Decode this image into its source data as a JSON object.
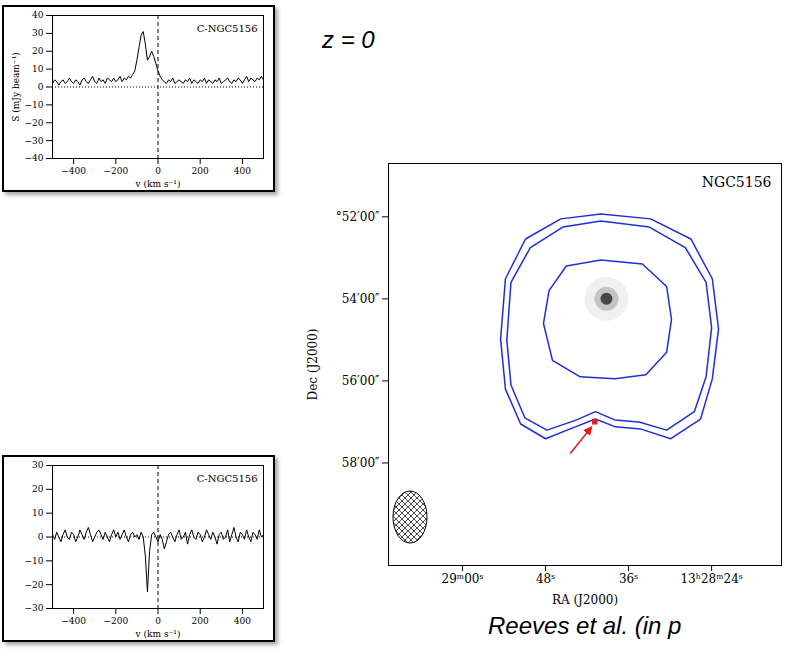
{
  "texts": {
    "redshift": "z = 0",
    "credit": "Reeves et al. (in p"
  },
  "chart_data": [
    {
      "type": "line",
      "title": "C-NGC5156",
      "x_label": "v (km s⁻¹)",
      "y_label": "S (mJy beam⁻¹)",
      "color": "#000000",
      "xlim": [
        -500,
        500
      ],
      "xticks": [
        -400,
        -200,
        0,
        200,
        400
      ],
      "ylim": [
        -40,
        40
      ],
      "yticks": [
        -40,
        -30,
        -20,
        -10,
        0,
        10,
        20,
        30,
        40
      ],
      "reference_lines": {
        "x": 0,
        "y": 0
      },
      "x": [
        -500,
        -490,
        -480,
        -470,
        -460,
        -450,
        -440,
        -430,
        -420,
        -410,
        -400,
        -390,
        -380,
        -370,
        -360,
        -350,
        -340,
        -330,
        -320,
        -310,
        -300,
        -290,
        -280,
        -270,
        -260,
        -250,
        -240,
        -230,
        -220,
        -210,
        -200,
        -190,
        -180,
        -170,
        -160,
        -150,
        -140,
        -130,
        -120,
        -110,
        -100,
        -90,
        -80,
        -70,
        -60,
        -50,
        -40,
        -30,
        -20,
        -10,
        0,
        10,
        20,
        30,
        40,
        50,
        60,
        70,
        80,
        90,
        100,
        110,
        120,
        130,
        140,
        150,
        160,
        170,
        180,
        190,
        200,
        210,
        220,
        230,
        240,
        250,
        260,
        270,
        280,
        290,
        300,
        310,
        320,
        330,
        340,
        350,
        360,
        370,
        380,
        390,
        400,
        410,
        420,
        430,
        440,
        450,
        460,
        470,
        480,
        490,
        500
      ],
      "values": [
        2,
        4,
        3,
        1,
        3,
        4,
        2,
        3,
        5,
        3,
        2,
        4,
        3,
        1,
        4,
        5,
        3,
        2,
        4,
        6,
        3,
        2,
        5,
        3,
        4,
        2,
        5,
        4,
        3,
        5,
        3,
        4,
        6,
        3,
        5,
        4,
        6,
        5,
        7,
        9,
        15,
        22,
        29,
        31,
        24,
        15,
        17,
        20,
        17,
        13,
        9,
        6,
        4,
        3,
        2,
        4,
        3,
        5,
        2,
        3,
        4,
        3,
        2,
        4,
        3,
        5,
        2,
        4,
        3,
        2,
        4,
        3,
        5,
        2,
        4,
        3,
        2,
        4,
        3,
        5,
        2,
        3,
        4,
        5,
        3,
        2,
        4,
        3,
        5,
        4,
        2,
        4,
        6,
        3,
        5,
        4,
        3,
        5,
        4,
        6,
        4
      ]
    },
    {
      "type": "line",
      "title": "C-NGC5156",
      "x_label": "v (km s⁻¹)",
      "color": "#000000",
      "xlim": [
        -500,
        500
      ],
      "xticks": [
        -400,
        -200,
        0,
        200,
        400
      ],
      "ylim": [
        -30,
        30
      ],
      "yticks": [
        -30,
        -20,
        -10,
        0,
        10,
        20,
        30
      ],
      "reference_lines": {
        "x": 0,
        "y": 0
      },
      "x": [
        -500,
        -490,
        -480,
        -470,
        -460,
        -450,
        -440,
        -430,
        -420,
        -410,
        -400,
        -390,
        -380,
        -370,
        -360,
        -350,
        -340,
        -330,
        -320,
        -310,
        -300,
        -290,
        -280,
        -270,
        -260,
        -250,
        -240,
        -230,
        -220,
        -210,
        -200,
        -190,
        -180,
        -170,
        -160,
        -150,
        -140,
        -130,
        -120,
        -110,
        -100,
        -90,
        -80,
        -70,
        -60,
        -50,
        -40,
        -30,
        -20,
        -10,
        0,
        10,
        20,
        30,
        40,
        50,
        60,
        70,
        80,
        90,
        100,
        110,
        120,
        130,
        140,
        150,
        160,
        170,
        180,
        190,
        200,
        210,
        220,
        230,
        240,
        250,
        260,
        270,
        280,
        290,
        300,
        310,
        320,
        330,
        340,
        350,
        360,
        370,
        380,
        390,
        400,
        410,
        420,
        430,
        440,
        450,
        460,
        470,
        480,
        490,
        500
      ],
      "values": [
        1,
        -1,
        2,
        0,
        -2,
        1,
        3,
        0,
        -1,
        2,
        1,
        -2,
        0,
        3,
        1,
        -1,
        2,
        4,
        1,
        -2,
        0,
        2,
        3,
        1,
        -1,
        2,
        0,
        -2,
        1,
        3,
        0,
        2,
        -1,
        1,
        3,
        0,
        -2,
        1,
        2,
        0,
        1,
        -1,
        2,
        0,
        -8,
        -23,
        -6,
        1,
        2,
        0,
        -2,
        1,
        -1,
        -5,
        -2,
        1,
        2,
        0,
        -2,
        1,
        3,
        -1,
        0,
        2,
        -3,
        1,
        3,
        0,
        -1,
        2,
        1,
        -2,
        0,
        3,
        1,
        -1,
        2,
        0,
        -3,
        1,
        2,
        -1,
        0,
        3,
        -2,
        1,
        4,
        0,
        -2,
        2,
        1,
        -1,
        3,
        0,
        -2,
        2,
        1,
        -1,
        3,
        0,
        1
      ]
    },
    {
      "type": "contour",
      "title": "NGC5156",
      "x_label": "RA (J2000)",
      "y_label": "Dec (J2000)",
      "color": "#1f2fd6",
      "xlim": [
        70.7,
        13.9
      ],
      "xticks": [
        {
          "value": 60,
          "label": "29ᵐ00ˢ"
        },
        {
          "value": 48,
          "label": "48ˢ"
        },
        {
          "value": 36,
          "label": "36ˢ"
        },
        {
          "value": 24,
          "label": "13ʰ28ᵐ24ˢ"
        }
      ],
      "ylim": [
        60.5,
        50.7
      ],
      "yticks": [
        {
          "value": 52,
          "label": "°52′00″"
        },
        {
          "value": 54,
          "label": "54′00″"
        },
        {
          "value": 56,
          "label": "56′00″"
        },
        {
          "value": 58,
          "label": "58′00″"
        }
      ],
      "source": {
        "ra": 39.2,
        "dec": 54.0
      },
      "contours": [
        [
          [
            40.0,
            51.93
          ],
          [
            32.8,
            52.05
          ],
          [
            27.0,
            52.54
          ],
          [
            23.9,
            53.51
          ],
          [
            23.0,
            54.73
          ],
          [
            23.9,
            55.95
          ],
          [
            25.6,
            56.93
          ],
          [
            29.9,
            57.41
          ],
          [
            34.3,
            57.17
          ],
          [
            37.9,
            57.12
          ],
          [
            40.8,
            56.93
          ],
          [
            43.7,
            57.12
          ],
          [
            48.0,
            57.41
          ],
          [
            51.6,
            57.05
          ],
          [
            53.8,
            56.2
          ],
          [
            54.5,
            54.98
          ],
          [
            53.8,
            53.51
          ],
          [
            50.9,
            52.54
          ],
          [
            45.8,
            52.05
          ],
          [
            40.0,
            51.93
          ]
        ],
        [
          [
            40.0,
            52.1
          ],
          [
            33.0,
            52.25
          ],
          [
            27.8,
            52.75
          ],
          [
            24.8,
            53.6
          ],
          [
            24.0,
            54.7
          ],
          [
            24.8,
            55.9
          ],
          [
            26.5,
            56.75
          ],
          [
            30.5,
            57.2
          ],
          [
            34.5,
            57.0
          ],
          [
            38.0,
            56.95
          ],
          [
            40.8,
            56.75
          ],
          [
            43.5,
            56.95
          ],
          [
            47.8,
            57.2
          ],
          [
            51.0,
            56.9
          ],
          [
            53.0,
            56.1
          ],
          [
            53.6,
            55.0
          ],
          [
            53.0,
            53.6
          ],
          [
            50.2,
            52.75
          ],
          [
            45.5,
            52.25
          ],
          [
            40.0,
            52.1
          ]
        ],
        [
          [
            40.0,
            53.05
          ],
          [
            34.0,
            53.15
          ],
          [
            30.5,
            53.7
          ],
          [
            29.8,
            54.5
          ],
          [
            30.5,
            55.3
          ],
          [
            33.5,
            55.85
          ],
          [
            38.0,
            55.95
          ],
          [
            43.0,
            55.9
          ],
          [
            47.0,
            55.5
          ],
          [
            48.3,
            54.6
          ],
          [
            47.5,
            53.8
          ],
          [
            45.0,
            53.2
          ],
          [
            40.0,
            53.05
          ]
        ]
      ],
      "pointer": {
        "ra": 40.9,
        "dec": 57.0,
        "color": "#e8191d",
        "marker": "square"
      }
    }
  ]
}
